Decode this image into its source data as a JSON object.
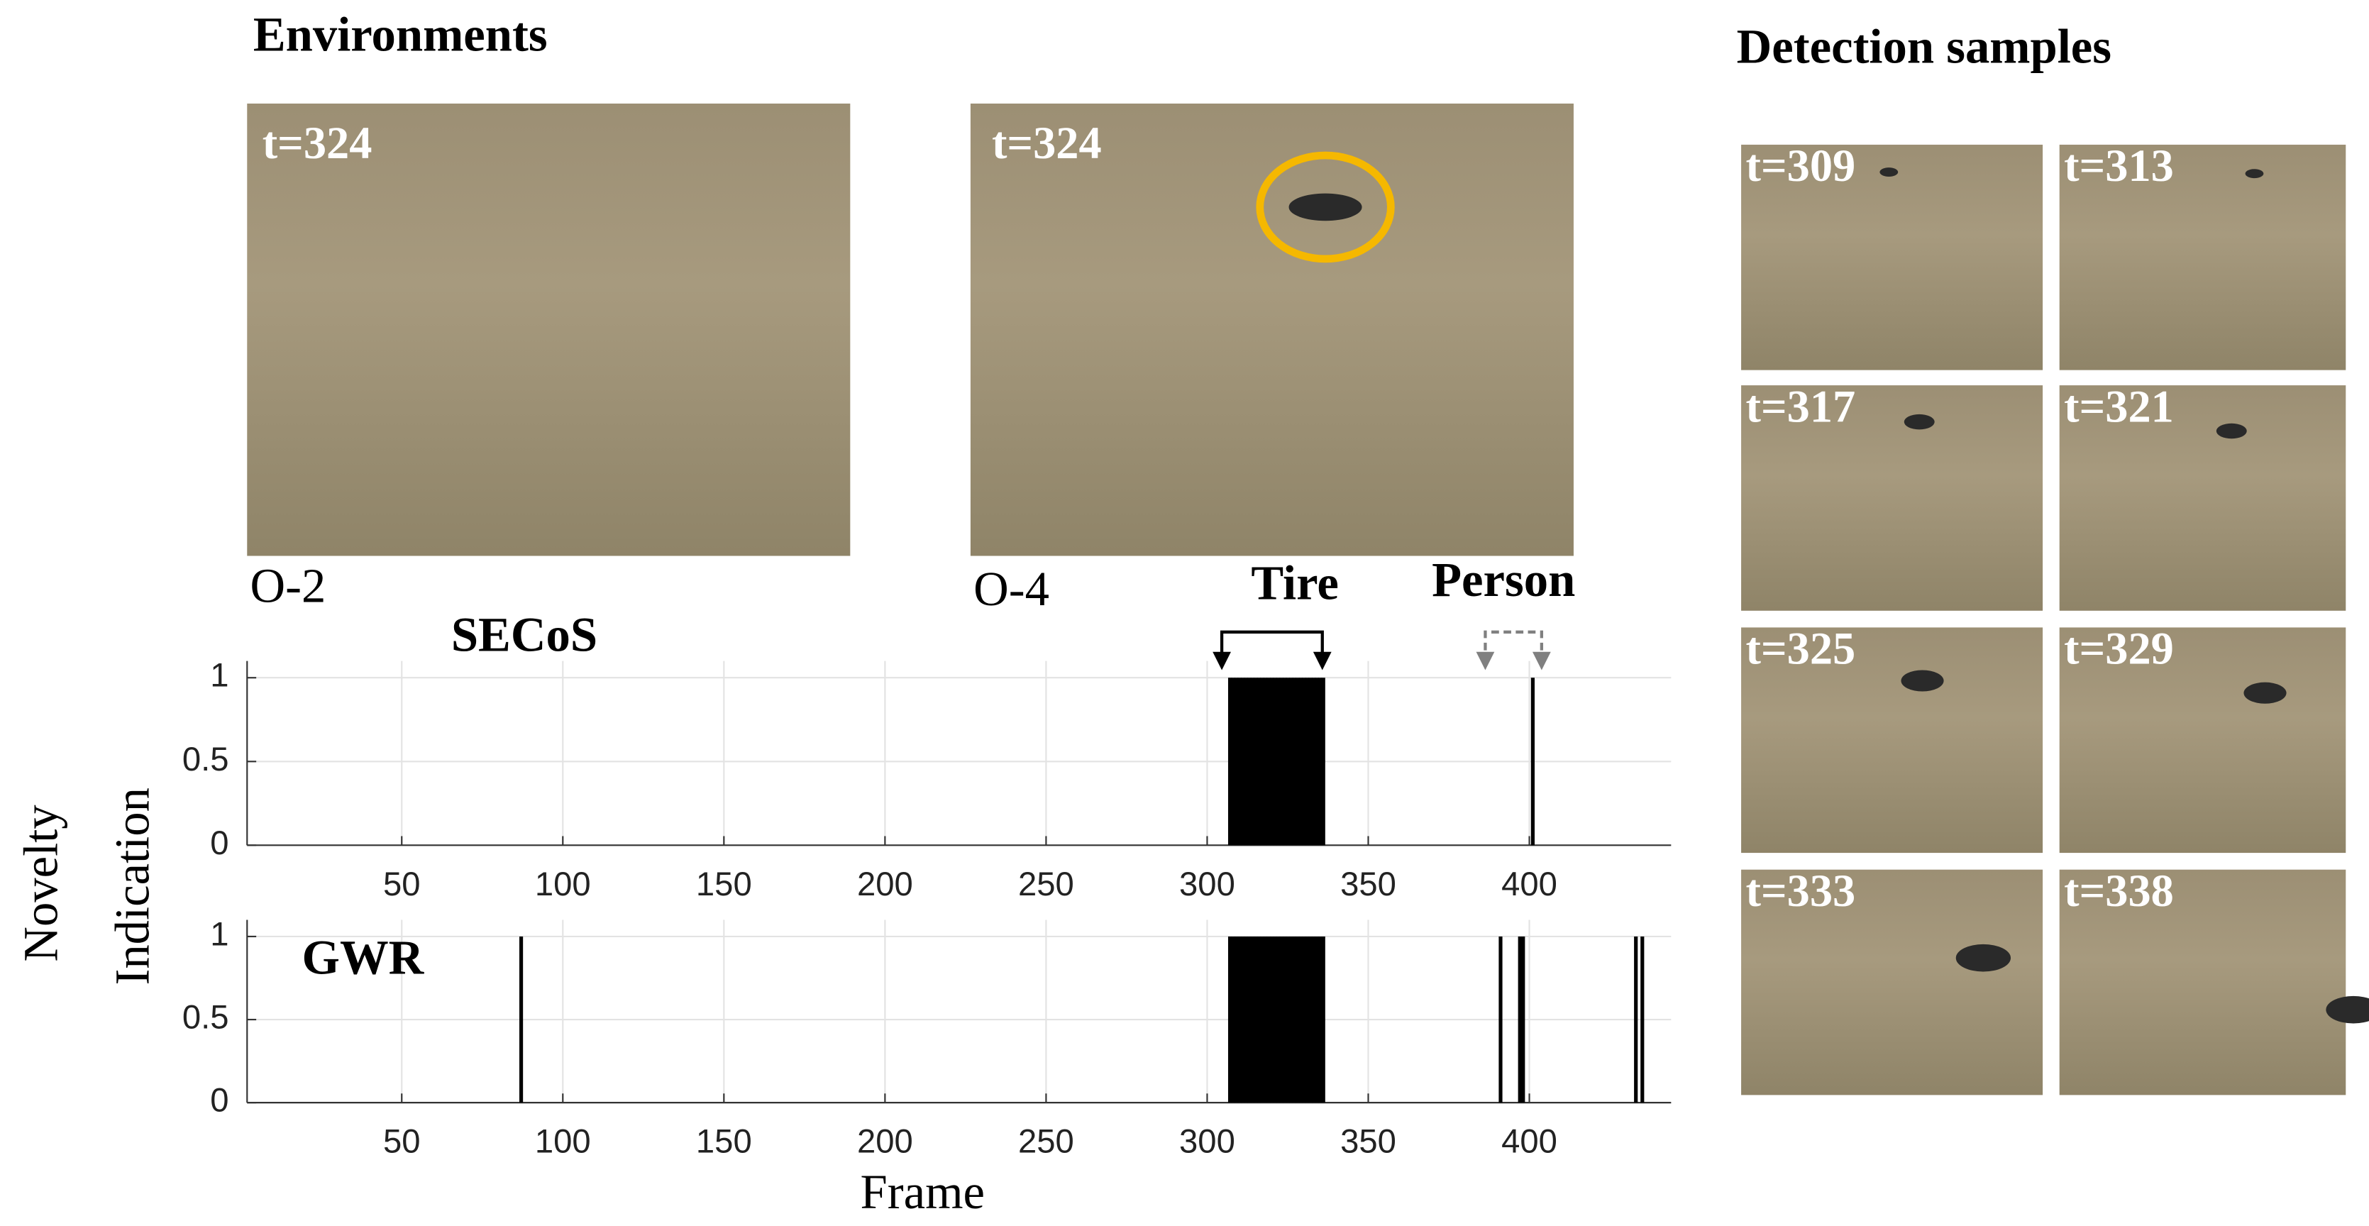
{
  "header": {
    "environments": "Environments",
    "samples": "Detection samples"
  },
  "environments": [
    {
      "time": "t=324",
      "name": "O-2"
    },
    {
      "time": "t=324",
      "name": "O-4"
    }
  ],
  "samples": [
    "t=309",
    "t=313",
    "t=317",
    "t=321",
    "t=325",
    "t=329",
    "t=333",
    "t=338"
  ],
  "ylabel": [
    "Novelty",
    "Indication"
  ],
  "chart_data": [
    {
      "type": "bar",
      "title": "SECoS",
      "color": "#000000",
      "grid": true,
      "annotations": [
        {
          "text": "Tire",
          "color": "#000000"
        },
        {
          "text": "Person",
          "color": "#808080"
        }
      ],
      "x": [
        307,
        308,
        309,
        310,
        311,
        312,
        313,
        314,
        315,
        316,
        317,
        318,
        319,
        320,
        321,
        322,
        323,
        324,
        325,
        326,
        327,
        328,
        329,
        330,
        331,
        332,
        333,
        334,
        335,
        336,
        401
      ],
      "values": [
        1,
        1,
        1,
        1,
        1,
        1,
        1,
        1,
        1,
        1,
        1,
        1,
        1,
        1,
        1,
        1,
        1,
        1,
        1,
        1,
        1,
        1,
        1,
        1,
        1,
        1,
        1,
        1,
        1,
        1,
        1
      ],
      "xlim": [
        2,
        444
      ],
      "ylim": [
        0,
        1.1
      ],
      "xticks": [
        50,
        100,
        150,
        200,
        250,
        300,
        350,
        400
      ],
      "yticks": [
        0,
        0.5,
        1
      ]
    },
    {
      "type": "bar",
      "title": "GWR",
      "xlabel": "Frame",
      "color": "#000000",
      "grid": true,
      "x": [
        87,
        307,
        308,
        309,
        310,
        311,
        312,
        313,
        314,
        315,
        316,
        317,
        318,
        319,
        320,
        321,
        322,
        323,
        324,
        325,
        326,
        327,
        328,
        329,
        330,
        331,
        332,
        333,
        334,
        335,
        336,
        391,
        397,
        398,
        433,
        435
      ],
      "values": [
        1,
        1,
        1,
        1,
        1,
        1,
        1,
        1,
        1,
        1,
        1,
        1,
        1,
        1,
        1,
        1,
        1,
        1,
        1,
        1,
        1,
        1,
        1,
        1,
        1,
        1,
        1,
        1,
        1,
        1,
        1,
        1,
        1,
        1,
        1,
        1
      ],
      "xlim": [
        2,
        444
      ],
      "ylim": [
        0,
        1.1
      ],
      "xticks": [
        50,
        100,
        150,
        200,
        250,
        300,
        350,
        400
      ],
      "yticks": [
        0,
        0.5,
        1
      ]
    }
  ]
}
